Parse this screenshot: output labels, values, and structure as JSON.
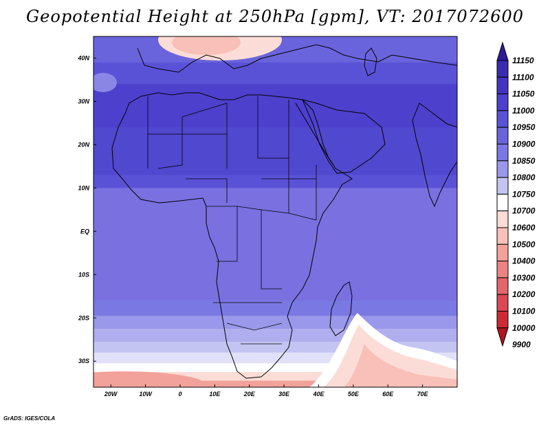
{
  "title": "Geopotential Height at 250hPa [gpm], VT: 2017072600",
  "credit": "GrADS: IGES/COLA",
  "map": {
    "lon_range": [
      -25,
      80
    ],
    "lat_range": [
      -36,
      45
    ],
    "lon_ticks": [
      {
        "value": -20,
        "label": "20W"
      },
      {
        "value": -10,
        "label": "10W"
      },
      {
        "value": 0,
        "label": "0"
      },
      {
        "value": 10,
        "label": "10E"
      },
      {
        "value": 20,
        "label": "20E"
      },
      {
        "value": 30,
        "label": "30E"
      },
      {
        "value": 40,
        "label": "40E"
      },
      {
        "value": 50,
        "label": "50E"
      },
      {
        "value": 60,
        "label": "60E"
      },
      {
        "value": 70,
        "label": "70E"
      }
    ],
    "lat_ticks": [
      {
        "value": 40,
        "label": "40N"
      },
      {
        "value": 30,
        "label": "30N"
      },
      {
        "value": 20,
        "label": "20N"
      },
      {
        "value": 10,
        "label": "10N"
      },
      {
        "value": 0,
        "label": "EQ"
      },
      {
        "value": -10,
        "label": "10S"
      },
      {
        "value": -20,
        "label": "20S"
      },
      {
        "value": -30,
        "label": "30S"
      }
    ]
  },
  "colorbar": {
    "levels": [
      "11150",
      "11100",
      "11050",
      "11000",
      "10950",
      "10900",
      "10850",
      "10800",
      "10750",
      "10700",
      "10600",
      "10500",
      "10400",
      "10300",
      "10200",
      "10100",
      "10000",
      "9900"
    ],
    "colors": [
      "#2e1a9a",
      "#3a2cb0",
      "#4433c0",
      "#4d40cc",
      "#5a52d6",
      "#6a64dc",
      "#7a78e2",
      "#9a98ea",
      "#c4c4f2",
      "#ffffff",
      "#fcdcd6",
      "#f8c0b8",
      "#f2a29a",
      "#ea8482",
      "#e2666a",
      "#da4852",
      "#cc2a36",
      "#b0141e"
    ]
  },
  "contour_fill": {
    "bands": [
      {
        "lat_top": 45,
        "lat_bottom": 39,
        "color": "#6a64dc"
      },
      {
        "lat_top": 39,
        "lat_bottom": 34,
        "color": "#5a52d6"
      },
      {
        "lat_top": 34,
        "lat_bottom": 24,
        "color": "#4d40cc"
      },
      {
        "lat_top": 24,
        "lat_bottom": 13,
        "color": "#5048ce"
      },
      {
        "lat_top": 13,
        "lat_bottom": 10,
        "color": "#5a52d6"
      },
      {
        "lat_top": 10,
        "lat_bottom": -16,
        "color": "#7a70e0"
      },
      {
        "lat_top": -16,
        "lat_bottom": -19.5,
        "color": "#7a78e2"
      },
      {
        "lat_top": -19.5,
        "lat_bottom": -22.5,
        "color": "#9a98ea"
      },
      {
        "lat_top": -22.5,
        "lat_bottom": -25.5,
        "color": "#b0aeee"
      },
      {
        "lat_top": -25.5,
        "lat_bottom": -28,
        "color": "#c4c4f2"
      },
      {
        "lat_top": -28,
        "lat_bottom": -30.5,
        "color": "#e0e0f8"
      },
      {
        "lat_top": -30.5,
        "lat_bottom": -32.5,
        "color": "#ffffff"
      },
      {
        "lat_top": -32.5,
        "lat_bottom": -34.5,
        "color": "#fcdcd6"
      },
      {
        "lat_top": -34.5,
        "lat_bottom": -36,
        "color": "#f2a29a"
      }
    ]
  }
}
